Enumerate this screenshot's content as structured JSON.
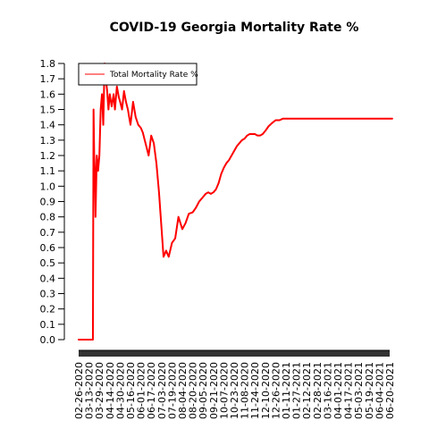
{
  "chart_data": {
    "type": "line",
    "title": "COVID-19 Georgia Mortality Rate %",
    "xlabel": "",
    "ylabel": "",
    "ylim": [
      0,
      1.8
    ],
    "y_ticks": [
      "0.0",
      "0.1",
      "0.2",
      "0.3",
      "0.4",
      "0.5",
      "0.6",
      "0.7",
      "0.8",
      "0.9",
      "1.0",
      "1.1",
      "1.2",
      "1.3",
      "1.4",
      "1.5",
      "1.6",
      "1.7",
      "1.8"
    ],
    "x_tick_labels": [
      "02-26-2020",
      "03-13-2020",
      "03-29-2020",
      "04-14-2020",
      "04-30-2020",
      "05-16-2020",
      "06-01-2020",
      "06-17-2020",
      "07-03-2020",
      "07-19-2020",
      "08-04-2020",
      "08-20-2020",
      "09-05-2020",
      "09-21-2020",
      "10-07-2020",
      "10-23-2020",
      "11-08-2020",
      "11-24-2020",
      "12-10-2020",
      "12-26-2020",
      "01-11-2021",
      "01-27-2021",
      "02-12-2021",
      "02-28-2021",
      "03-16-2021",
      "04-01-2021",
      "04-17-2021",
      "05-03-2021",
      "05-19-2021",
      "06-04-2021",
      "06-20-2021"
    ],
    "legend_position": "top-left",
    "grid": false,
    "series": [
      {
        "name": "Total Mortality Rate %",
        "color": "#ff0000",
        "x": [
          "02-26-2020",
          "03-13-2020",
          "03-19-2020",
          "03-20-2020",
          "03-21-2020",
          "03-22-2020",
          "03-23-2020",
          "03-25-2020",
          "03-27-2020",
          "03-29-2020",
          "03-31-2020",
          "04-02-2020",
          "04-04-2020",
          "04-06-2020",
          "04-08-2020",
          "04-10-2020",
          "04-12-2020",
          "04-14-2020",
          "04-17-2020",
          "04-20-2020",
          "04-22-2020",
          "04-25-2020",
          "04-28-2020",
          "04-30-2020",
          "05-03-2020",
          "05-06-2020",
          "05-09-2020",
          "05-12-2020",
          "05-14-2020",
          "05-16-2020",
          "05-20-2020",
          "05-24-2020",
          "05-28-2020",
          "06-01-2020",
          "06-04-2020",
          "06-07-2020",
          "06-10-2020",
          "06-13-2020",
          "06-17-2020",
          "06-21-2020",
          "06-25-2020",
          "06-29-2020",
          "07-03-2020",
          "07-06-2020",
          "07-10-2020",
          "07-14-2020",
          "07-19-2020",
          "07-24-2020",
          "07-29-2020",
          "08-04-2020",
          "08-09-2020",
          "08-14-2020",
          "08-20-2020",
          "08-25-2020",
          "08-30-2020",
          "09-05-2020",
          "09-09-2020",
          "09-13-2020",
          "09-17-2020",
          "09-21-2020",
          "09-25-2020",
          "09-29-2020",
          "10-03-2020",
          "10-07-2020",
          "10-11-2020",
          "10-15-2020",
          "10-19-2020",
          "10-23-2020",
          "10-27-2020",
          "10-31-2020",
          "11-04-2020",
          "11-08-2020",
          "11-12-2020",
          "11-16-2020",
          "11-20-2020",
          "11-24-2020",
          "11-28-2020",
          "12-02-2020",
          "12-06-2020",
          "12-10-2020",
          "12-15-2020",
          "12-20-2020",
          "12-26-2020",
          "01-01-2021",
          "01-06-2021",
          "01-11-2021",
          "01-19-2021",
          "01-27-2021",
          "02-04-2021",
          "02-12-2021",
          "02-20-2021",
          "02-28-2021",
          "03-08-2021",
          "03-16-2021",
          "03-24-2021",
          "04-01-2021",
          "04-09-2021",
          "04-17-2021",
          "04-25-2021",
          "05-03-2021",
          "05-11-2021",
          "05-19-2021",
          "05-27-2021",
          "06-04-2021",
          "06-12-2021",
          "06-20-2021",
          "06-24-2021"
        ],
        "values": [
          0,
          0,
          0,
          1.5,
          1.2,
          1.1,
          0.8,
          1.2,
          1.1,
          1.2,
          1.5,
          1.6,
          1.4,
          1.8,
          1.7,
          1.62,
          1.5,
          1.6,
          1.52,
          1.6,
          1.5,
          1.65,
          1.58,
          1.55,
          1.5,
          1.62,
          1.55,
          1.5,
          1.45,
          1.4,
          1.55,
          1.45,
          1.4,
          1.38,
          1.35,
          1.3,
          1.25,
          1.2,
          1.33,
          1.28,
          1.15,
          0.96,
          0.72,
          0.54,
          0.58,
          0.54,
          0.63,
          0.66,
          0.8,
          0.72,
          0.76,
          0.82,
          0.83,
          0.86,
          0.9,
          0.93,
          0.95,
          0.96,
          0.95,
          0.96,
          0.98,
          1.02,
          1.08,
          1.12,
          1.15,
          1.17,
          1.2,
          1.23,
          1.26,
          1.28,
          1.3,
          1.31,
          1.33,
          1.34,
          1.34,
          1.34,
          1.33,
          1.33,
          1.34,
          1.36,
          1.39,
          1.41,
          1.43,
          1.43,
          1.44,
          1.44,
          1.44,
          1.44,
          1.44,
          1.44,
          1.44,
          1.44,
          1.44,
          1.44,
          1.44,
          1.44,
          1.44,
          1.44,
          1.44,
          1.44,
          1.44,
          1.44,
          1.44,
          1.44,
          1.44,
          1.44,
          1.44
        ]
      }
    ]
  }
}
